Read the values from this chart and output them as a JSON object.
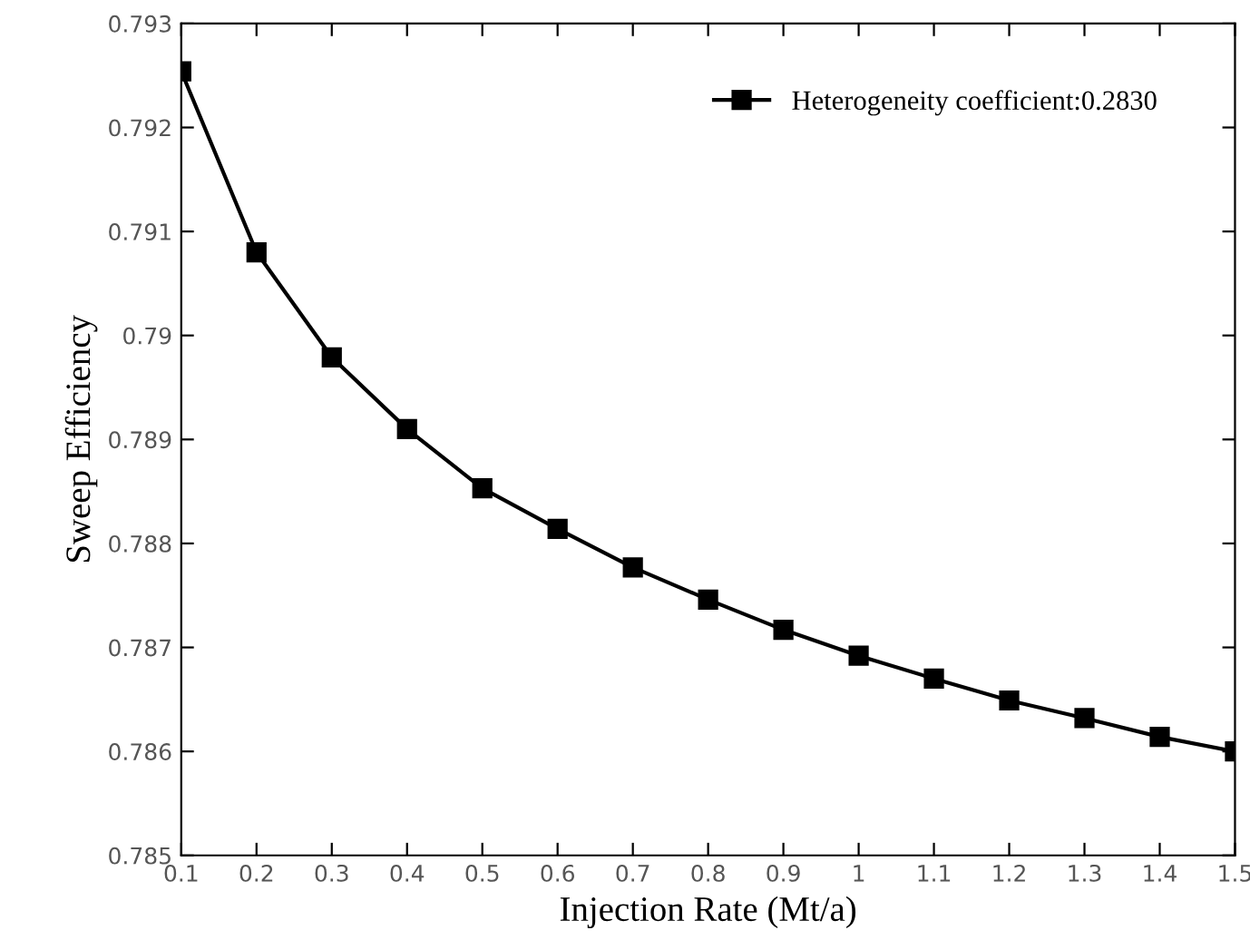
{
  "chart_data": {
    "type": "line",
    "xlabel": "Injection Rate (Mt/a)",
    "ylabel": "Sweep Efficiency",
    "x": [
      0.1,
      0.2,
      0.3,
      0.4,
      0.5,
      0.6,
      0.7,
      0.8,
      0.9,
      1.0,
      1.1,
      1.2,
      1.3,
      1.4,
      1.5
    ],
    "series": [
      {
        "name": "Heterogeneity coefficient:0.2830",
        "color": "#000000",
        "values": [
          0.79254,
          0.7908,
          0.78979,
          0.7891,
          0.78853,
          0.78814,
          0.78777,
          0.78746,
          0.78717,
          0.78692,
          0.7867,
          0.78649,
          0.78632,
          0.78614,
          0.786
        ]
      }
    ],
    "xlim": [
      0.1,
      1.5
    ],
    "xticks": [
      0.1,
      0.2,
      0.3,
      0.4,
      0.5,
      0.6,
      0.7,
      0.8,
      0.9,
      1,
      1.1,
      1.2,
      1.3,
      1.4,
      1.5
    ],
    "ylim": [
      0.785,
      0.793
    ],
    "yticks": [
      0.785,
      0.786,
      0.787,
      0.788,
      0.789,
      0.79,
      0.791,
      0.792,
      0.793
    ],
    "grid": false,
    "legend": "top right",
    "marker": "square",
    "line_style": "solid"
  }
}
